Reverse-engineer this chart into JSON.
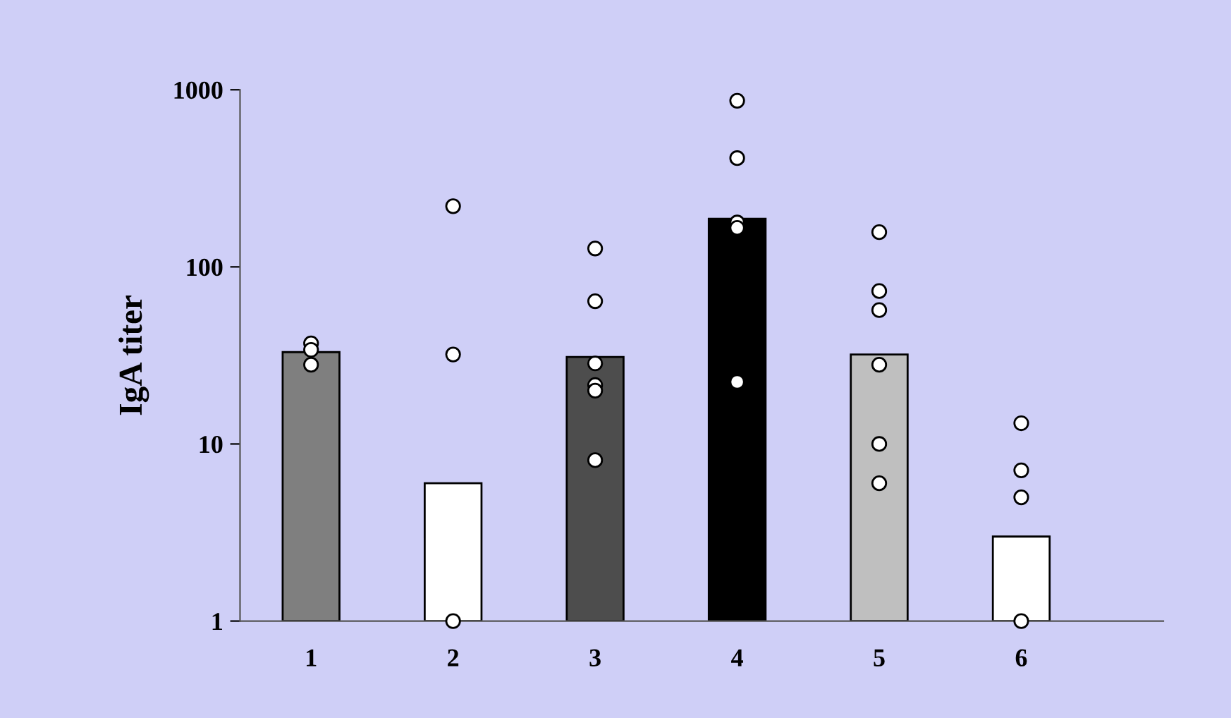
{
  "chart_data": {
    "type": "bar",
    "ylabel": "IgA titer",
    "categories": [
      "1",
      "2",
      "3",
      "4",
      "5",
      "6"
    ],
    "series": [
      {
        "colors": [
          "#7f7f7f",
          "#ffffff",
          "#4d4d4d",
          "#000000",
          "#bfbfbf",
          "#ffffff"
        ],
        "values": [
          33,
          6.0,
          31,
          187,
          32,
          3.0
        ]
      },
      {
        "type": "scatter",
        "color": "#ffffff",
        "marker": "circle",
        "x": [
          "1",
          "1",
          "1",
          "2",
          "2",
          "2",
          "3",
          "3",
          "3",
          "3",
          "3",
          "3",
          "4",
          "4",
          "4",
          "4",
          "4",
          "5",
          "5",
          "5",
          "5",
          "5",
          "5",
          "6",
          "6",
          "6",
          "6"
        ],
        "values": [
          37,
          34,
          28,
          220,
          32,
          1.0,
          127,
          64,
          28.5,
          21.5,
          20,
          8.1,
          867,
          411,
          178,
          166,
          22.4,
          157,
          73,
          57,
          28,
          10,
          6.0,
          13.1,
          7.1,
          5.0,
          1.0
        ]
      }
    ],
    "log": "y",
    "ylim": [
      1,
      1000
    ],
    "yticks": [
      1,
      10,
      100,
      1000
    ],
    "grid": false
  }
}
